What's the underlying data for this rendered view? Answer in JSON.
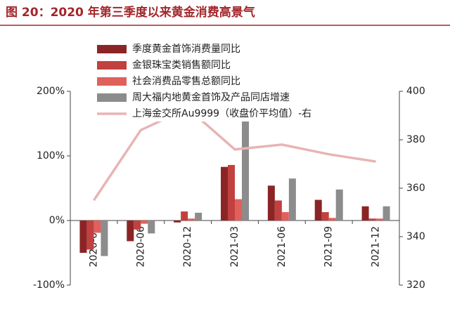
{
  "chart_data": {
    "type": "bar",
    "title": "图 20：2020 年第三季度以来黄金消费高景气",
    "categories": [
      "2020-03",
      "2020-06",
      "2020-12",
      "2021-03",
      "2021-06",
      "2021-09",
      "2021-12"
    ],
    "series": [
      {
        "name": "季度黄金首饰消费量同比",
        "color": "#8b2525",
        "values": [
          -50,
          -32,
          -3,
          83,
          54,
          32,
          22
        ]
      },
      {
        "name": "金银珠宝类销售额同比",
        "color": "#c0413f",
        "values": [
          -45,
          -14,
          14,
          86,
          31,
          13,
          3
        ]
      },
      {
        "name": "社会消费品零售总额同比",
        "color": "#e0605c",
        "values": [
          -19,
          -5,
          3,
          33,
          13,
          4,
          3
        ]
      },
      {
        "name": "周大福内地黄金首饰及产品同店增速",
        "color": "#8c8c8c",
        "values": [
          -55,
          -20,
          12,
          157,
          65,
          48,
          22
        ]
      },
      {
        "name": "上海金交所Au9999（收盘价平均值）-右",
        "color": "#e8b4b4",
        "type": "line",
        "axis": "y2",
        "values": [
          355,
          384,
          393,
          376,
          378,
          374,
          371
        ]
      }
    ],
    "ylim": [
      -100,
      200
    ],
    "yticks": [
      {
        "value": -100,
        "label": "-100%"
      },
      {
        "value": 0,
        "label": "0%"
      },
      {
        "value": 100,
        "label": "100%"
      },
      {
        "value": 200,
        "label": "200%"
      }
    ],
    "y2lim": [
      320,
      400
    ],
    "y2ticks": [
      320,
      340,
      360,
      380,
      400
    ],
    "legend": "top-left"
  }
}
